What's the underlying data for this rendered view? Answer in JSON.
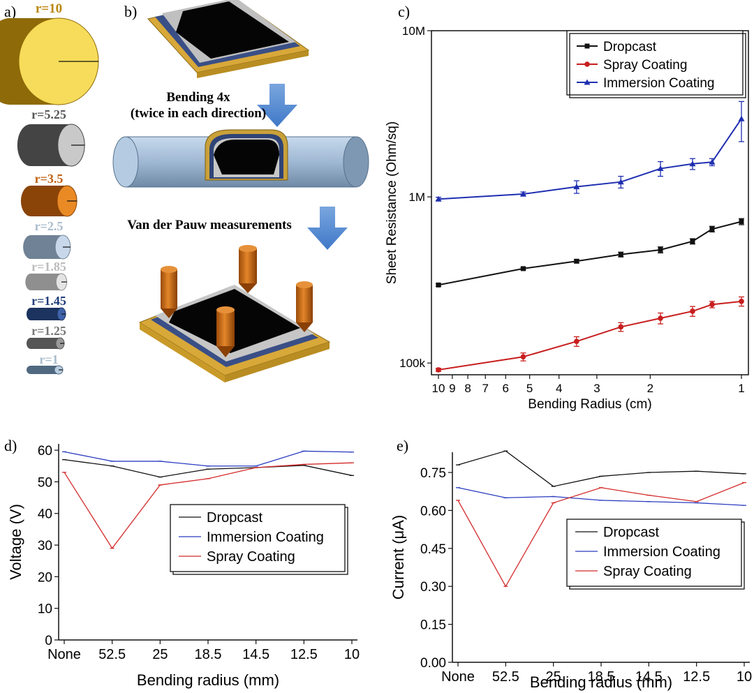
{
  "panel_labels": {
    "a": "a)",
    "b": "b)",
    "c": "c)",
    "d": "d)",
    "e": "e)"
  },
  "panel_a": {
    "cylinders": [
      {
        "label": "r=10",
        "color": "#b8860b",
        "light": "#f6dc5a",
        "dark": "#8f6a08"
      },
      {
        "label": "r=5.25",
        "color": "#555555",
        "light": "#c9c9c9",
        "dark": "#444444"
      },
      {
        "label": "r=3.5",
        "color": "#c06010",
        "light": "#e98a25",
        "dark": "#8a4408"
      },
      {
        "label": "r=2.5",
        "color": "#a9bccc",
        "light": "#c8d8ea",
        "dark": "#6f8296"
      },
      {
        "label": "r=1.85",
        "color": "#bbbbbb",
        "light": "#e4e4e4",
        "dark": "#8f8f8f"
      },
      {
        "label": "r=1.45",
        "color": "#1f3d7a",
        "light": "#3e63a8",
        "dark": "#1c335f"
      },
      {
        "label": "r=1.25",
        "color": "#777777",
        "light": "#9a9a9a",
        "dark": "#555555"
      },
      {
        "label": "r=1",
        "color": "#a9bccc",
        "light": "#b8cde0",
        "dark": "#506880"
      }
    ]
  },
  "panel_b": {
    "step1": "Bending 4x",
    "step1_sub": "(twice in each direction)",
    "step2": "Van der Pauw measurements"
  },
  "chart_data": [
    {
      "id": "c",
      "type": "line",
      "xlabel": "Bending Radius (cm)",
      "ylabel": "Sheet Resistance (Ohm/sq)",
      "xscale": "log-reversed",
      "xlim": [
        10,
        1
      ],
      "yscale": "log",
      "ylim": [
        85000,
        10000000
      ],
      "xticks": [
        10,
        9,
        8,
        7,
        6,
        5,
        4,
        3,
        2,
        1
      ],
      "yticks": [
        {
          "v": 100000,
          "label": "100k"
        },
        {
          "v": 1000000,
          "label": "1M"
        },
        {
          "v": 10000000,
          "label": "10M"
        }
      ],
      "legend_position": "top-right",
      "x": [
        10,
        5.25,
        3.5,
        2.5,
        1.85,
        1.45,
        1.25,
        1
      ],
      "series": [
        {
          "name": "Dropcast",
          "color": "#111111",
          "marker": "square",
          "values": [
            295000,
            370000,
            410000,
            450000,
            480000,
            540000,
            640000,
            710000
          ],
          "errors": [
            5000,
            6000,
            10000,
            15000,
            20000,
            20000,
            25000,
            30000
          ]
        },
        {
          "name": "Spray Coating",
          "color": "#c81e1e",
          "marker": "circle",
          "values": [
            91000,
            109000,
            135000,
            165000,
            186000,
            205000,
            225000,
            235000
          ],
          "errors": [
            2000,
            6000,
            9000,
            10000,
            14000,
            14000,
            10000,
            15000
          ]
        },
        {
          "name": "Immersion Coating",
          "color": "#1f2fb0",
          "marker": "triangle",
          "values": [
            970000,
            1040000,
            1150000,
            1230000,
            1480000,
            1580000,
            1620000,
            2950000
          ],
          "errors": [
            25000,
            30000,
            100000,
            100000,
            150000,
            120000,
            80000,
            800000
          ]
        }
      ]
    },
    {
      "id": "d",
      "type": "line",
      "xlabel": "Bending radius (mm)",
      "ylabel": "Voltage (V)",
      "categories": [
        "None",
        "52.5",
        "25",
        "18.5",
        "14.5",
        "12.5",
        "10"
      ],
      "ylim": [
        0,
        62
      ],
      "yticks": [
        0,
        10,
        20,
        30,
        40,
        50,
        60
      ],
      "legend_position": "center-right",
      "series": [
        {
          "name": "Dropcast",
          "color": "#111111",
          "values": [
            57,
            55,
            51.5,
            54,
            54.5,
            55.2,
            52
          ]
        },
        {
          "name": "Immersion Coating",
          "color": "#2a3cc0",
          "values": [
            59.5,
            56.5,
            56.5,
            55,
            55,
            59.7,
            59.4
          ]
        },
        {
          "name": "Spray Coating",
          "color": "#d42a2a",
          "values": [
            53,
            29,
            49,
            51,
            54.5,
            55.5,
            56
          ]
        }
      ]
    },
    {
      "id": "e",
      "type": "line",
      "xlabel": "Bending radius (mm)",
      "ylabel": "Current (μA)",
      "categories": [
        "None",
        "52.5",
        "25",
        "18.5",
        "14.5",
        "12.5",
        "10"
      ],
      "ylim": [
        0,
        0.83
      ],
      "yticks": [
        {
          "v": 0,
          "label": "0.00"
        },
        {
          "v": 0.15,
          "label": "0.15"
        },
        {
          "v": 0.3,
          "label": "0.30"
        },
        {
          "v": 0.45,
          "label": "0.45"
        },
        {
          "v": 0.6,
          "label": "0.60"
        },
        {
          "v": 0.75,
          "label": "0.75"
        }
      ],
      "legend_position": "center-right",
      "series": [
        {
          "name": "Dropcast",
          "color": "#111111",
          "values": [
            0.78,
            0.835,
            0.695,
            0.735,
            0.75,
            0.755,
            0.745
          ]
        },
        {
          "name": "Immersion Coating",
          "color": "#2a3cc0",
          "values": [
            0.69,
            0.65,
            0.655,
            0.64,
            0.635,
            0.63,
            0.62
          ]
        },
        {
          "name": "Spray Coating",
          "color": "#d42a2a",
          "values": [
            0.64,
            0.3,
            0.63,
            0.69,
            0.66,
            0.635,
            0.71
          ]
        }
      ]
    }
  ]
}
